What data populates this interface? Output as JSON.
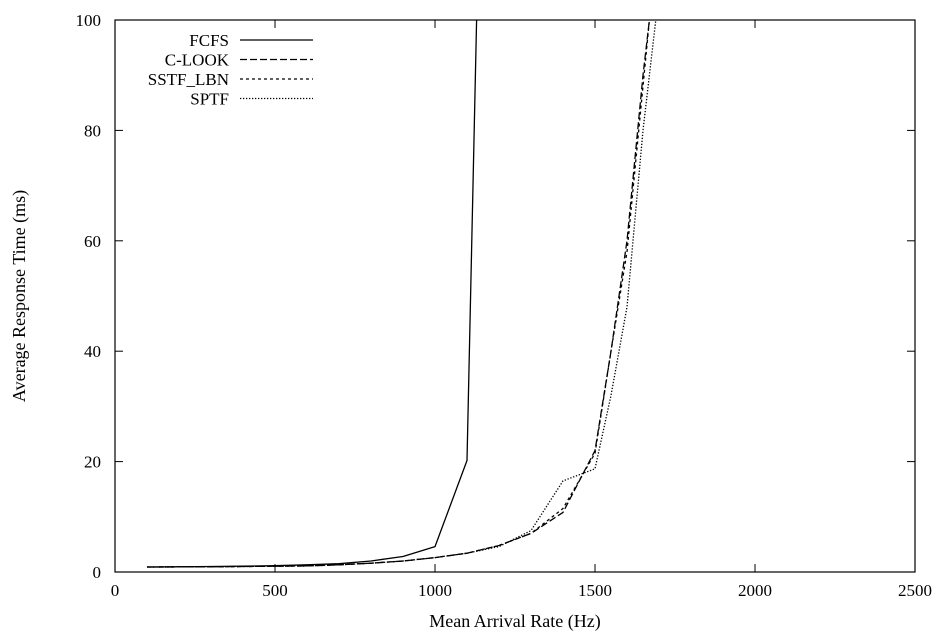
{
  "chart_data": {
    "type": "line",
    "title": "",
    "xlabel": "Mean Arrival Rate (Hz)",
    "ylabel": "Average Response Time (ms)",
    "xlim": [
      0,
      2500
    ],
    "ylim": [
      0,
      100
    ],
    "xticks": [
      "0",
      "500",
      "1000",
      "1500",
      "2000",
      "2500"
    ],
    "yticks": [
      "0",
      "20",
      "40",
      "60",
      "80",
      "100"
    ],
    "grid": false,
    "legend_position": "top-left",
    "series": [
      {
        "name": "FCFS",
        "dash": "solid",
        "x": [
          100,
          200,
          300,
          400,
          500,
          600,
          700,
          800,
          900,
          1000,
          1100,
          1130
        ],
        "y": [
          0.9,
          0.95,
          1.0,
          1.05,
          1.15,
          1.3,
          1.5,
          2.0,
          2.8,
          4.6,
          20.2,
          100
        ]
      },
      {
        "name": "C-LOOK",
        "dash": "dashed",
        "x": [
          100,
          200,
          300,
          400,
          500,
          600,
          700,
          800,
          900,
          1000,
          1100,
          1200,
          1300,
          1400,
          1500,
          1550,
          1600,
          1650,
          1670
        ],
        "y": [
          0.9,
          0.92,
          0.95,
          1.0,
          1.05,
          1.1,
          1.3,
          1.6,
          2.0,
          2.6,
          3.4,
          4.8,
          7.0,
          10.8,
          22.0,
          40,
          60,
          90,
          100
        ]
      },
      {
        "name": "SSTF_LBN",
        "dash": "short-dashed",
        "x": [
          100,
          200,
          300,
          400,
          500,
          600,
          700,
          800,
          900,
          1000,
          1100,
          1200,
          1300,
          1400,
          1500,
          1550,
          1600,
          1650,
          1670
        ],
        "y": [
          0.9,
          0.92,
          0.95,
          1.0,
          1.05,
          1.1,
          1.3,
          1.6,
          2.0,
          2.6,
          3.4,
          4.8,
          7.0,
          11.5,
          21.5,
          40,
          58,
          88,
          100
        ]
      },
      {
        "name": "SPTF",
        "dash": "dotted",
        "x": [
          100,
          200,
          300,
          400,
          500,
          600,
          700,
          800,
          900,
          1000,
          1100,
          1200,
          1300,
          1400,
          1500,
          1550,
          1600,
          1650,
          1690
        ],
        "y": [
          0.9,
          0.92,
          0.95,
          1.0,
          1.05,
          1.1,
          1.3,
          1.6,
          2.0,
          2.6,
          3.4,
          4.6,
          7.5,
          16.5,
          18.7,
          32,
          48,
          80,
          100
        ]
      }
    ]
  }
}
